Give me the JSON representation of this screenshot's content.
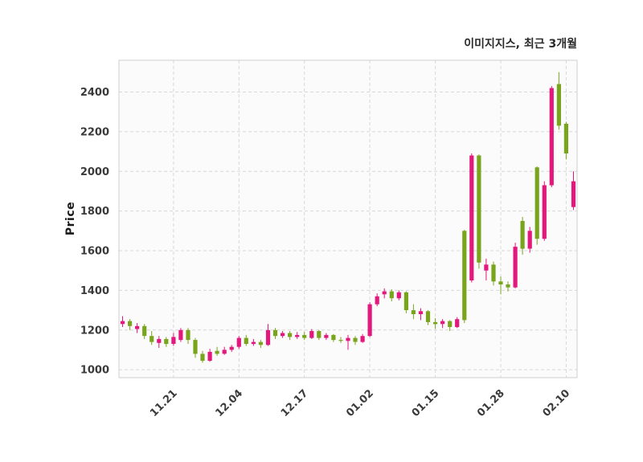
{
  "chart": {
    "title": "이미지지스, 최근 3개월",
    "ylabel": "Price"
  },
  "chart_data": {
    "type": "candlestick",
    "title": "이미지지스, 최근 3개월",
    "xlabel": "",
    "ylabel": "Price",
    "legend": "none",
    "grid": "dashed",
    "ylim": [
      960,
      2560
    ],
    "y_ticks": [
      1000,
      1200,
      1400,
      1600,
      1800,
      2000,
      2200,
      2400
    ],
    "x_tick_labels": [
      "11.21",
      "12.04",
      "12.17",
      "01.02",
      "01.15",
      "01.28",
      "02.10"
    ],
    "x_tick_indices": [
      7,
      16,
      25,
      34,
      43,
      52,
      61
    ],
    "up_color": "#e2187d",
    "down_color": "#79a51d",
    "candles_format": [
      "open",
      "high",
      "low",
      "close"
    ],
    "candles": [
      [
        1230,
        1270,
        1215,
        1245
      ],
      [
        1245,
        1255,
        1200,
        1220
      ],
      [
        1205,
        1235,
        1185,
        1220
      ],
      [
        1220,
        1230,
        1155,
        1170
      ],
      [
        1170,
        1195,
        1125,
        1140
      ],
      [
        1135,
        1170,
        1110,
        1155
      ],
      [
        1155,
        1165,
        1115,
        1130
      ],
      [
        1130,
        1185,
        1120,
        1165
      ],
      [
        1150,
        1210,
        1140,
        1200
      ],
      [
        1200,
        1210,
        1130,
        1150
      ],
      [
        1150,
        1160,
        1060,
        1080
      ],
      [
        1080,
        1095,
        1035,
        1045
      ],
      [
        1045,
        1105,
        1040,
        1090
      ],
      [
        1095,
        1115,
        1070,
        1080
      ],
      [
        1080,
        1115,
        1075,
        1100
      ],
      [
        1100,
        1125,
        1090,
        1115
      ],
      [
        1115,
        1170,
        1105,
        1160
      ],
      [
        1160,
        1175,
        1120,
        1130
      ],
      [
        1130,
        1155,
        1120,
        1140
      ],
      [
        1140,
        1150,
        1110,
        1125
      ],
      [
        1125,
        1230,
        1120,
        1200
      ],
      [
        1200,
        1210,
        1155,
        1170
      ],
      [
        1170,
        1195,
        1160,
        1185
      ],
      [
        1185,
        1195,
        1150,
        1165
      ],
      [
        1165,
        1190,
        1155,
        1175
      ],
      [
        1175,
        1190,
        1150,
        1160
      ],
      [
        1160,
        1205,
        1155,
        1195
      ],
      [
        1195,
        1200,
        1150,
        1160
      ],
      [
        1160,
        1185,
        1150,
        1175
      ],
      [
        1175,
        1180,
        1140,
        1150
      ],
      [
        1150,
        1165,
        1135,
        1145
      ],
      [
        1145,
        1175,
        1100,
        1160
      ],
      [
        1160,
        1170,
        1125,
        1140
      ],
      [
        1140,
        1180,
        1135,
        1170
      ],
      [
        1170,
        1340,
        1165,
        1330
      ],
      [
        1330,
        1385,
        1320,
        1370
      ],
      [
        1380,
        1410,
        1360,
        1395
      ],
      [
        1395,
        1405,
        1345,
        1360
      ],
      [
        1360,
        1400,
        1350,
        1390
      ],
      [
        1390,
        1395,
        1285,
        1300
      ],
      [
        1300,
        1330,
        1255,
        1280
      ],
      [
        1280,
        1310,
        1250,
        1295
      ],
      [
        1295,
        1300,
        1225,
        1240
      ],
      [
        1240,
        1260,
        1205,
        1230
      ],
      [
        1230,
        1255,
        1210,
        1245
      ],
      [
        1245,
        1250,
        1195,
        1215
      ],
      [
        1215,
        1265,
        1210,
        1255
      ],
      [
        1700,
        1705,
        1235,
        1250
      ],
      [
        1450,
        2090,
        1440,
        2080
      ],
      [
        2080,
        2085,
        1510,
        1540
      ],
      [
        1500,
        1560,
        1450,
        1530
      ],
      [
        1530,
        1545,
        1425,
        1445
      ],
      [
        1445,
        1470,
        1380,
        1430
      ],
      [
        1430,
        1445,
        1395,
        1415
      ],
      [
        1415,
        1640,
        1410,
        1620
      ],
      [
        1750,
        1770,
        1580,
        1610
      ],
      [
        1610,
        1720,
        1590,
        1700
      ],
      [
        2020,
        2025,
        1630,
        1660
      ],
      [
        1660,
        1950,
        1650,
        1930
      ],
      [
        1930,
        2430,
        1920,
        2420
      ],
      [
        2440,
        2500,
        2210,
        2230
      ],
      [
        2240,
        2250,
        2060,
        2090
      ],
      [
        1820,
        2000,
        1805,
        1950
      ]
    ]
  }
}
